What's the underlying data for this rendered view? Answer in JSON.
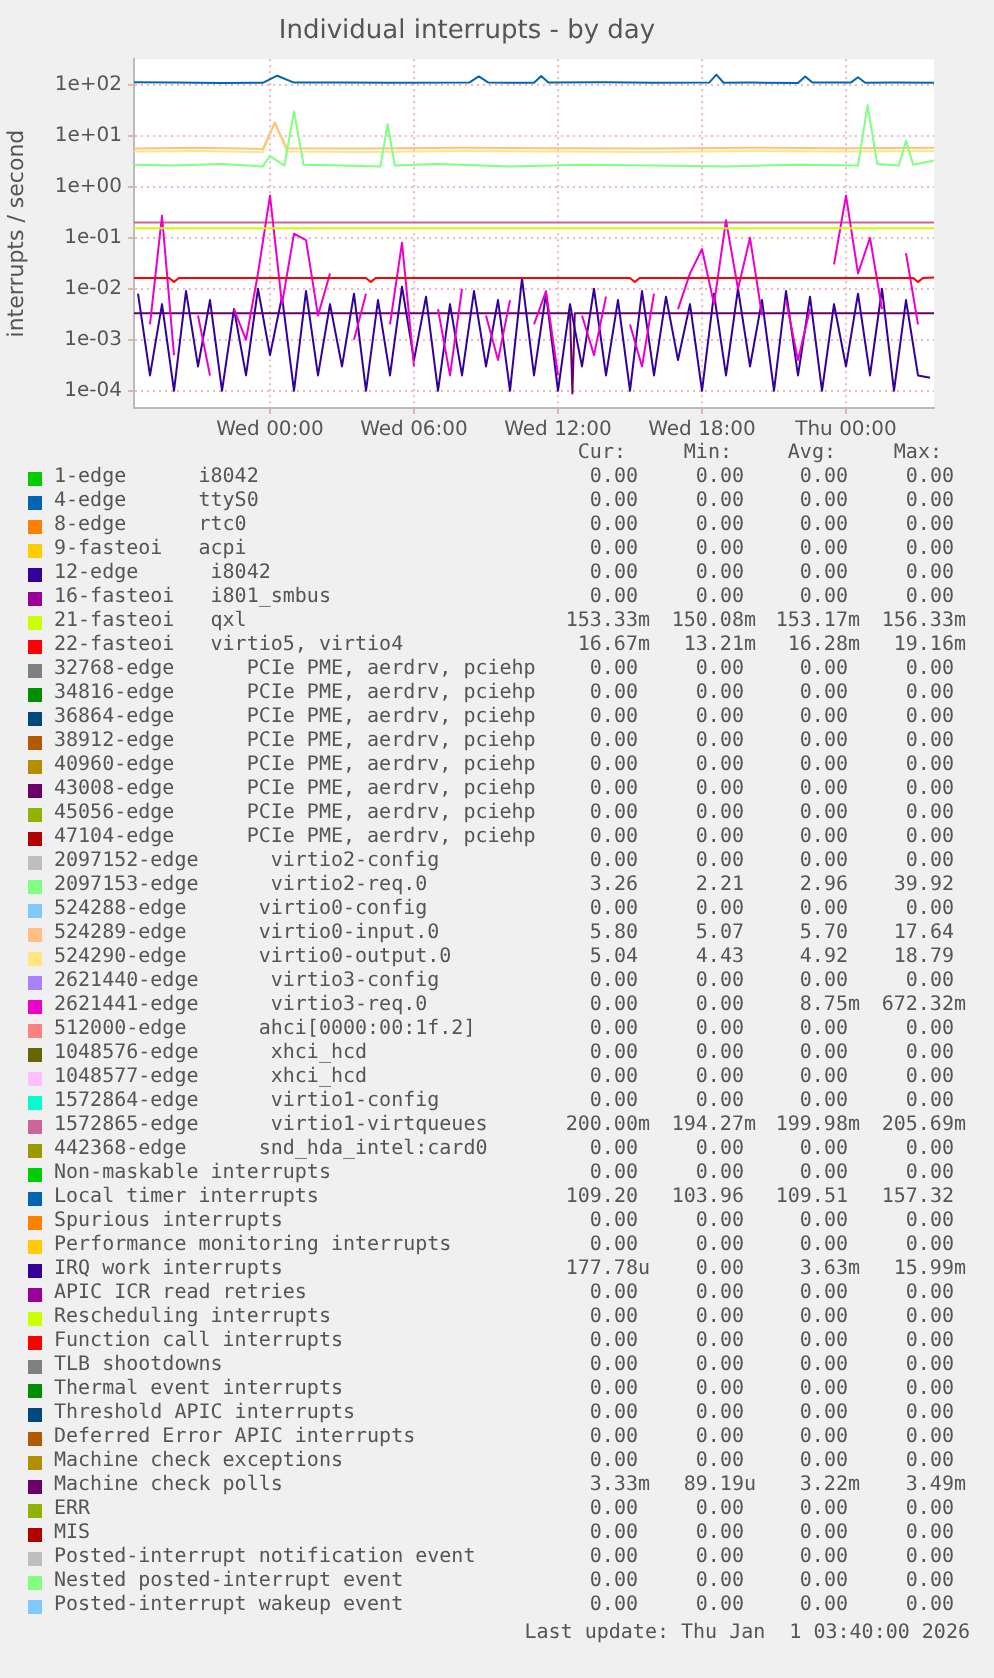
{
  "chart_data": [
    {
      "type": "line",
      "title": "Individual interrupts - by day",
      "ylabel": "interrupts / second",
      "log": "y",
      "grid": true,
      "legend": "bottom",
      "xlim": [
        "2025-12-30T18:20",
        "2026-01-01T03:40"
      ],
      "xticks": [
        {
          "value": "2025-12-31T00:00",
          "label": "Wed 00:00"
        },
        {
          "value": "2025-12-31T06:00",
          "label": "Wed 06:00"
        },
        {
          "value": "2025-12-31T12:00",
          "label": "Wed 12:00"
        },
        {
          "value": "2025-12-31T18:00",
          "label": "Wed 18:00"
        },
        {
          "value": "2026-01-01T00:00",
          "label": "Thu 00:00"
        }
      ],
      "ylim": [
        4.6e-05,
        316
      ],
      "yticks": [
        {
          "value": 0.0001,
          "label": "1e-04"
        },
        {
          "value": 0.001,
          "label": "1e-03"
        },
        {
          "value": 0.01,
          "label": "1e-02"
        },
        {
          "value": 0.1,
          "label": "1e-01"
        },
        {
          "value": 1,
          "label": "1e+00"
        },
        {
          "value": 10,
          "label": "1e+01"
        },
        {
          "value": 100,
          "label": "1e+02"
        }
      ],
      "series": [
        {
          "name": "1-edge      i8042",
          "color": "#00cc00"
        },
        {
          "name": "4-edge      ttyS0",
          "color": "#0066b3"
        },
        {
          "name": "8-edge      rtc0",
          "color": "#ff8000"
        },
        {
          "name": "9-fasteoi   acpi",
          "color": "#ffcc00"
        },
        {
          "name": "12-edge      i8042",
          "color": "#330099"
        },
        {
          "name": "16-fasteoi   i801_smbus",
          "color": "#990099"
        },
        {
          "name": "21-fasteoi   qxl",
          "color": "#ccff00",
          "x": [
            "2025-12-30T18:20",
            "2026-01-01T03:40"
          ],
          "values": [
            0.153,
            0.153
          ]
        },
        {
          "name": "22-fasteoi   virtio5, virtio4",
          "color": "#ff0000",
          "x": [
            "2025-12-30T18:20",
            "2025-12-30T19:48",
            "2025-12-30T20:00",
            "2025-12-30T20:12",
            "2025-12-31T00:00",
            "2025-12-31T04:00",
            "2025-12-31T04:12",
            "2025-12-31T04:24",
            "2025-12-31T08:00",
            "2025-12-31T12:00",
            "2025-12-31T15:00",
            "2025-12-31T15:12",
            "2025-12-31T15:24",
            "2025-12-31T20:00",
            "2026-01-01T00:00",
            "2026-01-01T02:48",
            "2026-01-01T03:00",
            "2026-01-01T03:12",
            "2026-01-01T03:40"
          ],
          "values": [
            0.0163,
            0.0163,
            0.0135,
            0.0163,
            0.0163,
            0.0163,
            0.0135,
            0.0163,
            0.0163,
            0.0163,
            0.0163,
            0.0135,
            0.0163,
            0.0163,
            0.0163,
            0.0163,
            0.0135,
            0.0163,
            0.0167
          ]
        },
        {
          "name": "32768-edge      PCIe PME, aerdrv, pciehp",
          "color": "#808080"
        },
        {
          "name": "34816-edge      PCIe PME, aerdrv, pciehp",
          "color": "#008f00"
        },
        {
          "name": "36864-edge      PCIe PME, aerdrv, pciehp",
          "color": "#00487d"
        },
        {
          "name": "38912-edge      PCIe PME, aerdrv, pciehp",
          "color": "#b35a00"
        },
        {
          "name": "40960-edge      PCIe PME, aerdrv, pciehp",
          "color": "#b38f00"
        },
        {
          "name": "43008-edge      PCIe PME, aerdrv, pciehp",
          "color": "#6b006b"
        },
        {
          "name": "45056-edge      PCIe PME, aerdrv, pciehp",
          "color": "#8fb300"
        },
        {
          "name": "47104-edge      PCIe PME, aerdrv, pciehp",
          "color": "#b30000"
        },
        {
          "name": "2097152-edge      virtio2-config",
          "color": "#bebebe"
        },
        {
          "name": "2097153-edge      virtio2-req.0",
          "color": "#80ff80",
          "x": [
            "2025-12-30T18:20",
            "2025-12-30T20:00",
            "2025-12-30T22:00",
            "2025-12-30T23:42",
            "2025-12-31T00:00",
            "2025-12-31T00:36",
            "2025-12-31T01:00",
            "2025-12-31T01:24",
            "2025-12-31T03:00",
            "2025-12-31T04:36",
            "2025-12-31T04:54",
            "2025-12-31T05:12",
            "2025-12-31T07:00",
            "2025-12-31T10:00",
            "2025-12-31T13:00",
            "2025-12-31T16:00",
            "2025-12-31T19:00",
            "2025-12-31T22:00",
            "2026-01-01T00:30",
            "2026-01-01T00:54",
            "2026-01-01T01:18",
            "2026-01-01T02:12",
            "2026-01-01T02:30",
            "2026-01-01T02:48",
            "2026-01-01T03:40"
          ],
          "values": [
            2.7,
            2.6,
            2.8,
            2.5,
            4,
            2.6,
            30,
            2.7,
            2.6,
            2.5,
            17,
            2.6,
            2.8,
            2.5,
            2.7,
            2.6,
            2.5,
            2.7,
            2.6,
            39.92,
            2.8,
            2.6,
            8,
            2.7,
            3.26
          ]
        },
        {
          "name": "524288-edge      virtio0-config",
          "color": "#80c9ff"
        },
        {
          "name": "524289-edge      virtio0-input.0",
          "color": "#ffc080",
          "x": [
            "2025-12-30T18:20",
            "2025-12-30T21:00",
            "2025-12-30T23:42",
            "2025-12-31T00:12",
            "2025-12-31T00:42",
            "2025-12-31T04:00",
            "2025-12-31T08:00",
            "2025-12-31T12:00",
            "2025-12-31T16:00",
            "2025-12-31T20:00",
            "2026-01-01T00:00",
            "2026-01-01T03:40"
          ],
          "values": [
            5.6,
            5.8,
            5.5,
            17.64,
            5.7,
            5.6,
            5.8,
            5.7,
            5.6,
            5.8,
            5.7,
            5.8
          ]
        },
        {
          "name": "524290-edge      virtio0-output.0",
          "color": "#ffe680",
          "x": [
            "2025-12-30T18:20",
            "2025-12-30T21:00",
            "2025-12-30T23:42",
            "2025-12-31T00:12",
            "2025-12-31T00:42",
            "2025-12-31T04:00",
            "2025-12-31T08:00",
            "2025-12-31T12:00",
            "2025-12-31T16:00",
            "2025-12-31T20:00",
            "2026-01-01T00:00",
            "2026-01-01T03:40"
          ],
          "values": [
            4.9,
            5.0,
            4.8,
            18.79,
            4.9,
            4.8,
            5.0,
            4.9,
            4.8,
            5.0,
            4.9,
            5.04
          ]
        },
        {
          "name": "2621440-edge      virtio3-config",
          "color": "#aa80ff"
        },
        {
          "name": "2621441-edge      virtio3-req.0",
          "color": "#ee00cc",
          "x": [
            "2025-12-30T19:00",
            "2025-12-30T19:30",
            "2025-12-30T20:00",
            "2025-12-30T20:30",
            "2025-12-30T21:00",
            "2025-12-30T21:30",
            "2025-12-30T22:00",
            "2025-12-30T22:30",
            "2025-12-30T23:00",
            "2025-12-30T23:30",
            "2025-12-31T00:00",
            "2025-12-31T00:30",
            "2025-12-31T01:00",
            "2025-12-31T01:30",
            "2025-12-31T02:00",
            "2025-12-31T02:30",
            "2025-12-31T03:00",
            "2025-12-31T03:30",
            "2025-12-31T04:00",
            "2025-12-31T04:30",
            "2025-12-31T05:00",
            "2025-12-31T05:30",
            "2025-12-31T06:00",
            "2025-12-31T06:30",
            "2025-12-31T07:00",
            "2025-12-31T07:30",
            "2025-12-31T08:00",
            "2025-12-31T08:30",
            "2025-12-31T09:00",
            "2025-12-31T09:30",
            "2025-12-31T10:00",
            "2025-12-31T10:30",
            "2025-12-31T11:00",
            "2025-12-31T11:30",
            "2025-12-31T12:00",
            "2025-12-31T12:30",
            "2025-12-31T13:00",
            "2025-12-31T13:30",
            "2025-12-31T14:00",
            "2025-12-31T14:30",
            "2025-12-31T15:00",
            "2025-12-31T15:30",
            "2025-12-31T16:00",
            "2025-12-31T16:30",
            "2025-12-31T17:00",
            "2025-12-31T17:30",
            "2025-12-31T18:00",
            "2025-12-31T18:30",
            "2025-12-31T19:00",
            "2025-12-31T19:30",
            "2025-12-31T20:00",
            "2025-12-31T20:30",
            "2025-12-31T21:00",
            "2025-12-31T21:30",
            "2025-12-31T22:00",
            "2025-12-31T22:30",
            "2025-12-31T23:00",
            "2025-12-31T23:30",
            "2026-01-01T00:00",
            "2026-01-01T00:30",
            "2026-01-01T01:00",
            "2026-01-01T01:30",
            "2026-01-01T02:00",
            "2026-01-01T02:30",
            "2026-01-01T03:00"
          ],
          "values": [
            0.002,
            0.27,
            0.0005,
            null,
            0.003,
            0.0002,
            null,
            0.004,
            0.001,
            0.02,
            0.67,
            0.005,
            0.12,
            0.09,
            0.003,
            0.02,
            null,
            0.001,
            0.008,
            null,
            0.002,
            0.08,
            0.0003,
            null,
            0.004,
            0.0002,
            0.01,
            null,
            0.003,
            0.0004,
            0.006,
            null,
            0.002,
            0.009,
            0.0002,
            null,
            0.003,
            0.0005,
            0.007,
            null,
            0.002,
            0.0003,
            0.008,
            null,
            0.004,
            0.02,
            0.06,
            0.005,
            0.22,
            0.01,
            0.1,
            0.003,
            null,
            0.006,
            0.0004,
            0.004,
            null,
            0.03,
            0.67,
            0.02,
            0.1,
            0.004,
            null,
            0.05,
            0.002
          ]
        },
        {
          "name": "512000-edge      ahci[0000:00:1f.2]",
          "color": "#ff8080"
        },
        {
          "name": "1048576-edge      xhci_hcd",
          "color": "#666600"
        },
        {
          "name": "1048577-edge      xhci_hcd",
          "color": "#ffbfff"
        },
        {
          "name": "1572864-edge      virtio1-config",
          "color": "#00ffcc"
        },
        {
          "name": "1572865-edge      virtio1-virtqueues",
          "color": "#cc6699",
          "x": [
            "2025-12-30T18:20",
            "2026-01-01T03:40"
          ],
          "values": [
            0.2,
            0.2
          ]
        },
        {
          "name": "442368-edge      snd_hda_intel:card0",
          "color": "#999900"
        },
        {
          "name": "Non-maskable interrupts",
          "color": "#00cc00"
        },
        {
          "name": "Local timer interrupts",
          "color": "#0066b3",
          "x": [
            "2025-12-30T18:20",
            "2025-12-30T20:00",
            "2025-12-30T22:00",
            "2025-12-30T23:42",
            "2025-12-31T00:18",
            "2025-12-31T01:00",
            "2025-12-31T03:00",
            "2025-12-31T05:00",
            "2025-12-31T08:18",
            "2025-12-31T08:42",
            "2025-12-31T09:06",
            "2025-12-31T11:00",
            "2025-12-31T11:18",
            "2025-12-31T11:36",
            "2025-12-31T14:00",
            "2025-12-31T16:00",
            "2025-12-31T18:18",
            "2025-12-31T18:36",
            "2025-12-31T18:54",
            "2025-12-31T20:00",
            "2025-12-31T22:00",
            "2025-12-31T22:18",
            "2025-12-31T22:36",
            "2026-01-01T00:12",
            "2026-01-01T00:30",
            "2026-01-01T00:48",
            "2026-01-01T02:00",
            "2026-01-01T03:40"
          ],
          "values": [
            112,
            110,
            108,
            109,
            150,
            110,
            111,
            109,
            110,
            145,
            110,
            109,
            148,
            110,
            112,
            109,
            110,
            157,
            109,
            110,
            108,
            145,
            110,
            110,
            140,
            109,
            110,
            109.2
          ]
        },
        {
          "name": "Spurious interrupts",
          "color": "#ff8000"
        },
        {
          "name": "Performance monitoring interrupts",
          "color": "#ffcc00"
        },
        {
          "name": "IRQ work interrupts",
          "color": "#330099",
          "x": [
            "2025-12-30T18:30",
            "2025-12-30T19:00",
            "2025-12-30T19:30",
            "2025-12-30T20:00",
            "2025-12-30T20:30",
            "2025-12-30T21:00",
            "2025-12-30T21:30",
            "2025-12-30T22:00",
            "2025-12-30T22:30",
            "2025-12-30T23:00",
            "2025-12-30T23:30",
            "2025-12-31T00:00",
            "2025-12-31T00:30",
            "2025-12-31T01:00",
            "2025-12-31T01:30",
            "2025-12-31T02:00",
            "2025-12-31T02:30",
            "2025-12-31T03:00",
            "2025-12-31T03:30",
            "2025-12-31T04:00",
            "2025-12-31T04:30",
            "2025-12-31T05:00",
            "2025-12-31T05:30",
            "2025-12-31T06:00",
            "2025-12-31T06:30",
            "2025-12-31T07:00",
            "2025-12-31T07:30",
            "2025-12-31T08:00",
            "2025-12-31T08:30",
            "2025-12-31T09:00",
            "2025-12-31T09:30",
            "2025-12-31T10:00",
            "2025-12-31T10:30",
            "2025-12-31T11:00",
            "2025-12-31T11:30",
            "2025-12-31T12:00",
            "2025-12-31T12:30",
            "2025-12-31T13:00",
            "2025-12-31T13:30",
            "2025-12-31T14:00",
            "2025-12-31T14:30",
            "2025-12-31T15:00",
            "2025-12-31T15:30",
            "2025-12-31T16:00",
            "2025-12-31T16:30",
            "2025-12-31T17:00",
            "2025-12-31T17:30",
            "2025-12-31T18:00",
            "2025-12-31T18:30",
            "2025-12-31T19:00",
            "2025-12-31T19:30",
            "2025-12-31T20:00",
            "2025-12-31T20:30",
            "2025-12-31T21:00",
            "2025-12-31T21:30",
            "2025-12-31T22:00",
            "2025-12-31T22:30",
            "2025-12-31T23:00",
            "2025-12-31T23:30",
            "2026-01-01T00:00",
            "2026-01-01T00:30",
            "2026-01-01T01:00",
            "2026-01-01T01:30",
            "2026-01-01T02:00",
            "2026-01-01T02:30",
            "2026-01-01T03:00",
            "2026-01-01T03:30"
          ],
          "values": [
            0.008,
            0.0002,
            0.005,
            0.0001,
            0.009,
            0.0003,
            0.006,
            0.0001,
            0.004,
            0.0002,
            0.01,
            0.0005,
            0.007,
            0.0001,
            0.009,
            0.0002,
            0.005,
            0.0003,
            0.008,
            0.0001,
            0.006,
            0.0002,
            0.011,
            0.0004,
            0.007,
            0.0001,
            0.005,
            0.0002,
            0.009,
            0.0003,
            0.006,
            0.0001,
            0.016,
            0.0002,
            0.008,
            0.0001,
            0.005,
            0.0003,
            0.01,
            0.0002,
            0.006,
            0.0001,
            0.009,
            0.0002,
            0.007,
            0.0004,
            0.005,
            0.0001,
            0.008,
            0.0002,
            0.01,
            0.0003,
            0.006,
            0.0001,
            0.009,
            0.0002,
            0.007,
            0.0001,
            0.005,
            0.0003,
            0.008,
            0.0002,
            0.01,
            0.0001,
            0.006,
            0.0002,
            0.00018
          ]
        },
        {
          "name": "APIC ICR read retries",
          "color": "#990099"
        },
        {
          "name": "Rescheduling interrupts",
          "color": "#ccff00"
        },
        {
          "name": "Function call interrupts",
          "color": "#ff0000"
        },
        {
          "name": "TLB shootdowns",
          "color": "#808080"
        },
        {
          "name": "Thermal event interrupts",
          "color": "#008f00"
        },
        {
          "name": "Threshold APIC interrupts",
          "color": "#00487d"
        },
        {
          "name": "Deferred Error APIC interrupts",
          "color": "#b35a00"
        },
        {
          "name": "Machine check exceptions",
          "color": "#b38f00"
        },
        {
          "name": "Machine check polls",
          "color": "#6b006b",
          "x": [
            "2025-12-30T18:20",
            "2025-12-31T12:30",
            "2025-12-31T12:36",
            "2025-12-31T12:42",
            "2026-01-01T03:40"
          ],
          "values": [
            0.0033,
            0.0033,
            8.9e-05,
            0.0033,
            0.0033
          ]
        },
        {
          "name": "ERR",
          "color": "#8fb300"
        },
        {
          "name": "MIS",
          "color": "#b30000"
        },
        {
          "name": "Posted-interrupt notification event",
          "color": "#bebebe"
        },
        {
          "name": "Nested posted-interrupt event",
          "color": "#80ff80"
        },
        {
          "name": "Posted-interrupt wakeup event",
          "color": "#80c9ff"
        }
      ]
    },
    {
      "type": "other",
      "annotations": [
        "Cur:",
        "Min:",
        "Avg:",
        "Max:",
        "0.00",
        "0.00",
        "0.00",
        "0.00",
        "0.00",
        "0.00",
        "0.00",
        "0.00",
        "0.00",
        "0.00",
        "0.00",
        "0.00",
        "0.00",
        "0.00",
        "0.00",
        "0.00",
        "0.00",
        "0.00",
        "0.00",
        "0.00",
        "0.00",
        "0.00",
        "0.00",
        "0.00",
        "153.33m",
        "150.08m",
        "153.17m",
        "156.33m",
        "16.67m",
        "13.21m",
        "16.28m",
        "19.16m",
        "0.00",
        "0.00",
        "0.00",
        "0.00",
        "0.00",
        "0.00",
        "0.00",
        "0.00",
        "0.00",
        "0.00",
        "0.00",
        "0.00",
        "0.00",
        "0.00",
        "0.00",
        "0.00",
        "0.00",
        "0.00",
        "0.00",
        "0.00",
        "0.00",
        "0.00",
        "0.00",
        "0.00",
        "0.00",
        "0.00",
        "0.00",
        "0.00",
        "0.00",
        "0.00",
        "0.00",
        "0.00",
        "0.00",
        "0.00",
        "0.00",
        "0.00",
        "3.26",
        "2.21",
        "2.96",
        "39.92",
        "0.00",
        "0.00",
        "0.00",
        "0.00",
        "5.80",
        "5.07",
        "5.70",
        "17.64",
        "5.04",
        "4.43",
        "4.92",
        "18.79",
        "0.00",
        "0.00",
        "0.00",
        "0.00",
        "0.00",
        "0.00",
        "8.75m",
        "672.32m",
        "0.00",
        "0.00",
        "0.00",
        "0.00",
        "0.00",
        "0.00",
        "0.00",
        "0.00",
        "0.00",
        "0.00",
        "0.00",
        "0.00",
        "0.00",
        "0.00",
        "0.00",
        "0.00",
        "200.00m",
        "194.27m",
        "199.98m",
        "205.69m",
        "0.00",
        "0.00",
        "0.00",
        "0.00",
        "0.00",
        "0.00",
        "0.00",
        "0.00",
        "109.20",
        "103.96",
        "109.51",
        "157.32",
        "0.00",
        "0.00",
        "0.00",
        "0.00",
        "0.00",
        "0.00",
        "0.00",
        "0.00",
        "177.78u",
        "0.00",
        "3.63m",
        "15.99m",
        "0.00",
        "0.00",
        "0.00",
        "0.00",
        "0.00",
        "0.00",
        "0.00",
        "0.00",
        "0.00",
        "0.00",
        "0.00",
        "0.00",
        "0.00",
        "0.00",
        "0.00",
        "0.00",
        "0.00",
        "0.00",
        "0.00",
        "0.00",
        "0.00",
        "0.00",
        "0.00",
        "0.00",
        "0.00",
        "0.00",
        "0.00",
        "0.00",
        "0.00",
        "0.00",
        "0.00",
        "0.00",
        "3.33m",
        "89.19u",
        "3.22m",
        "3.49m",
        "0.00",
        "0.00",
        "0.00",
        "0.00",
        "0.00",
        "0.00",
        "0.00",
        "0.00",
        "0.00",
        "0.00",
        "0.00",
        "0.00",
        "0.00",
        "0.00",
        "0.00",
        "0.00",
        "0.00",
        "0.00",
        "0.00",
        "0.00",
        "Last update: Thu Jan  1 03:40:00 2026"
      ]
    }
  ]
}
